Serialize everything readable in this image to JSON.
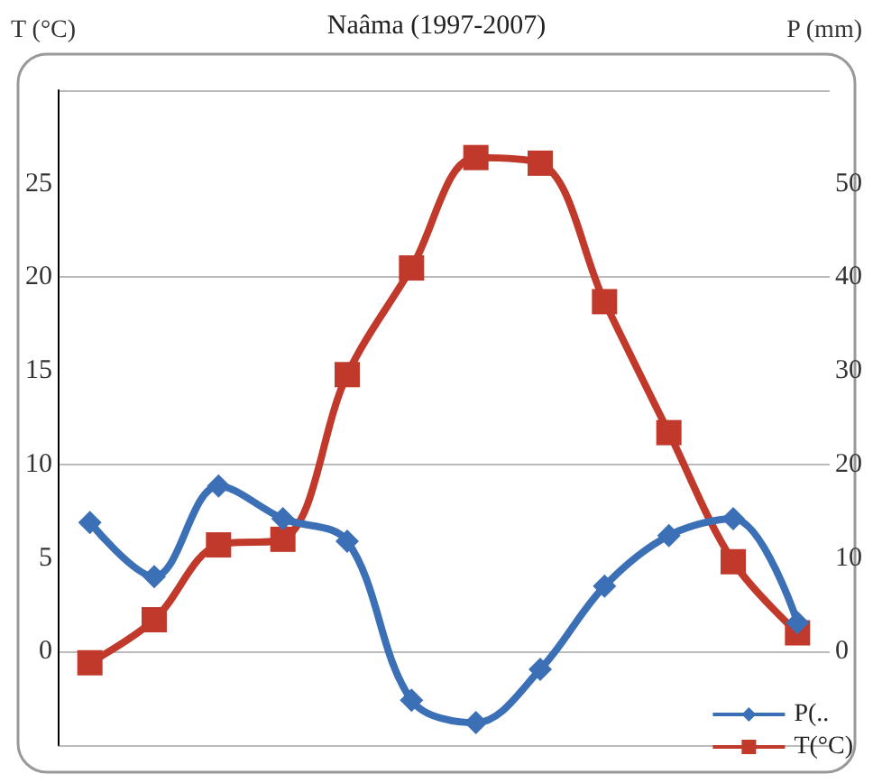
{
  "chart_data": {
    "type": "line",
    "title": "Naâma (1997-2007)",
    "ylabel": "T (°C)",
    "y2label": "P (mm)",
    "categories": [
      null,
      null,
      null,
      null,
      null,
      null,
      null,
      null,
      null,
      null,
      null,
      null
    ],
    "series": [
      {
        "name": "P(..",
        "color": "#3b6fb6",
        "axis": "y2",
        "marker": "diamond",
        "values": [
          13.8,
          8.0,
          17.7,
          14.2,
          11.8,
          -5.2,
          -7.6,
          -1.9,
          7.0,
          12.4,
          14.2,
          3.1
        ]
      },
      {
        "name": "T(°C)",
        "color": "#c0392b",
        "marker": "square",
        "values": [
          -0.6,
          1.7,
          5.7,
          6.0,
          14.8,
          20.5,
          26.4,
          26.1,
          18.7,
          11.7,
          4.8,
          1.0
        ]
      }
    ],
    "ylim": [
      -5,
      30
    ],
    "yticks": [
      0,
      5,
      10,
      15,
      20,
      25
    ],
    "y2lim": [
      -10,
      60
    ],
    "y2ticks": [
      0,
      10,
      20,
      30,
      40,
      50
    ],
    "grid": "y",
    "legend": "bottom right"
  }
}
